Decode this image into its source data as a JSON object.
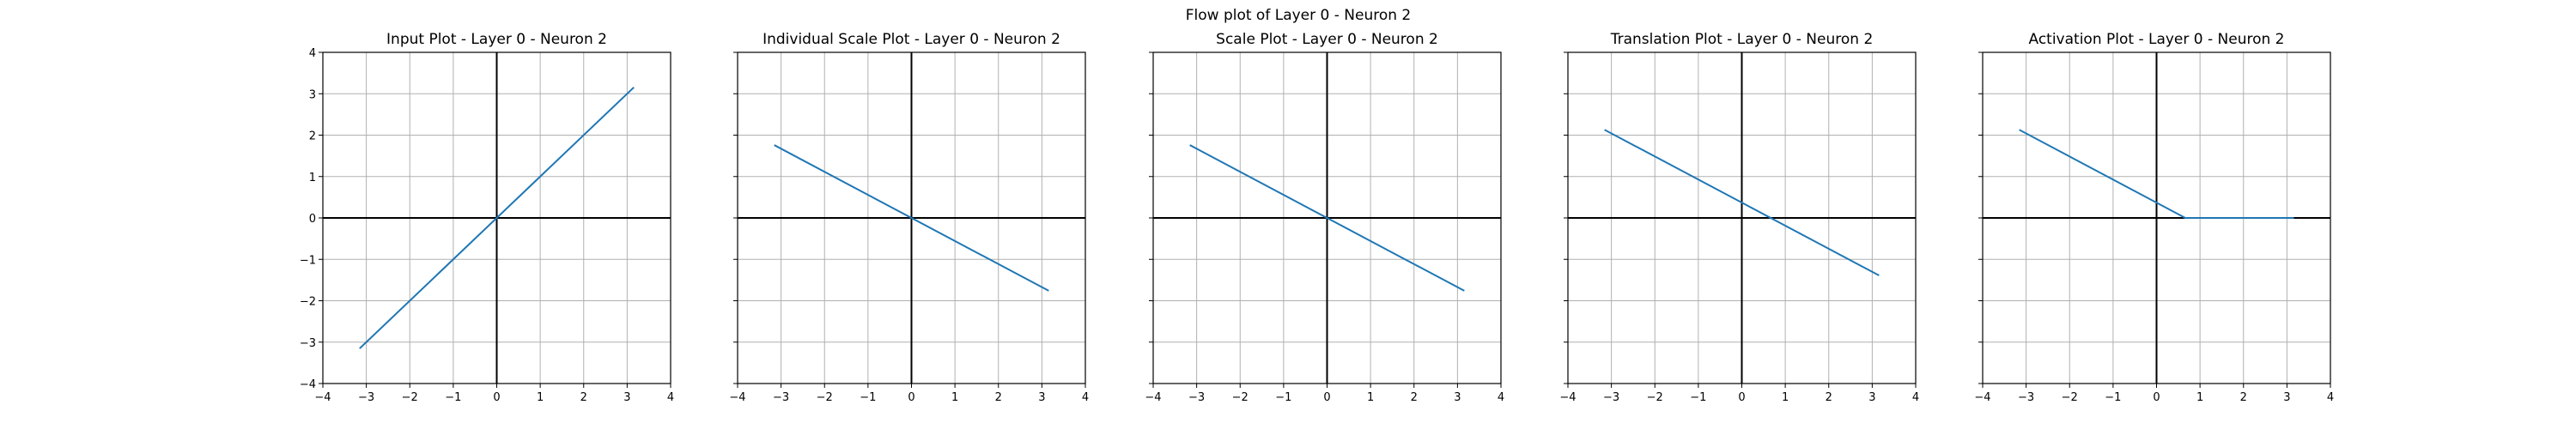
{
  "figure": {
    "suptitle": "Flow plot of Layer 0 - Neuron 2"
  },
  "chart_data": [
    {
      "type": "line",
      "title": "Input Plot - Layer 0 - Neuron 2",
      "xlim": [
        -4,
        4
      ],
      "ylim": [
        -4,
        4
      ],
      "xticks": [
        -4,
        -3,
        -2,
        -1,
        0,
        1,
        2,
        3,
        4
      ],
      "yticks": [
        -4,
        -3,
        -2,
        -1,
        0,
        1,
        2,
        3,
        4
      ],
      "show_yticklabels": true,
      "grid": true,
      "series": [
        {
          "color": "#1f77b4",
          "x": [
            -3.14,
            3.14
          ],
          "y": [
            -3.14,
            3.14
          ]
        }
      ]
    },
    {
      "type": "line",
      "title": "Individual Scale Plot - Layer 0 - Neuron 2",
      "xlim": [
        -4,
        4
      ],
      "ylim": [
        -4,
        4
      ],
      "xticks": [
        -4,
        -3,
        -2,
        -1,
        0,
        1,
        2,
        3,
        4
      ],
      "yticks": [
        -4,
        -3,
        -2,
        -1,
        0,
        1,
        2,
        3,
        4
      ],
      "show_yticklabels": false,
      "grid": true,
      "series": [
        {
          "color": "#1f77b4",
          "x": [
            -3.14,
            3.14
          ],
          "y": [
            1.75,
            -1.75
          ]
        }
      ]
    },
    {
      "type": "line",
      "title": "Scale Plot - Layer 0 - Neuron 2",
      "xlim": [
        -4,
        4
      ],
      "ylim": [
        -4,
        4
      ],
      "xticks": [
        -4,
        -3,
        -2,
        -1,
        0,
        1,
        2,
        3,
        4
      ],
      "yticks": [
        -4,
        -3,
        -2,
        -1,
        0,
        1,
        2,
        3,
        4
      ],
      "show_yticklabels": false,
      "grid": true,
      "series": [
        {
          "color": "#1f77b4",
          "x": [
            -3.14,
            3.14
          ],
          "y": [
            1.75,
            -1.75
          ]
        }
      ]
    },
    {
      "type": "line",
      "title": "Translation Plot - Layer 0 - Neuron 2",
      "xlim": [
        -4,
        4
      ],
      "ylim": [
        -4,
        4
      ],
      "xticks": [
        -4,
        -3,
        -2,
        -1,
        0,
        1,
        2,
        3,
        4
      ],
      "yticks": [
        -4,
        -3,
        -2,
        -1,
        0,
        1,
        2,
        3,
        4
      ],
      "show_yticklabels": false,
      "grid": true,
      "series": [
        {
          "color": "#1f77b4",
          "x": [
            -3.14,
            3.14
          ],
          "y": [
            2.12,
            -1.38
          ]
        }
      ]
    },
    {
      "type": "line",
      "title": "Activation Plot - Layer 0 - Neuron 2",
      "xlim": [
        -4,
        4
      ],
      "ylim": [
        -4,
        4
      ],
      "xticks": [
        -4,
        -3,
        -2,
        -1,
        0,
        1,
        2,
        3,
        4
      ],
      "yticks": [
        -4,
        -3,
        -2,
        -1,
        0,
        1,
        2,
        3,
        4
      ],
      "show_yticklabels": false,
      "grid": true,
      "series": [
        {
          "color": "#1f77b4",
          "x": [
            -3.14,
            0.66,
            3.14
          ],
          "y": [
            2.12,
            0,
            0
          ]
        }
      ]
    }
  ]
}
